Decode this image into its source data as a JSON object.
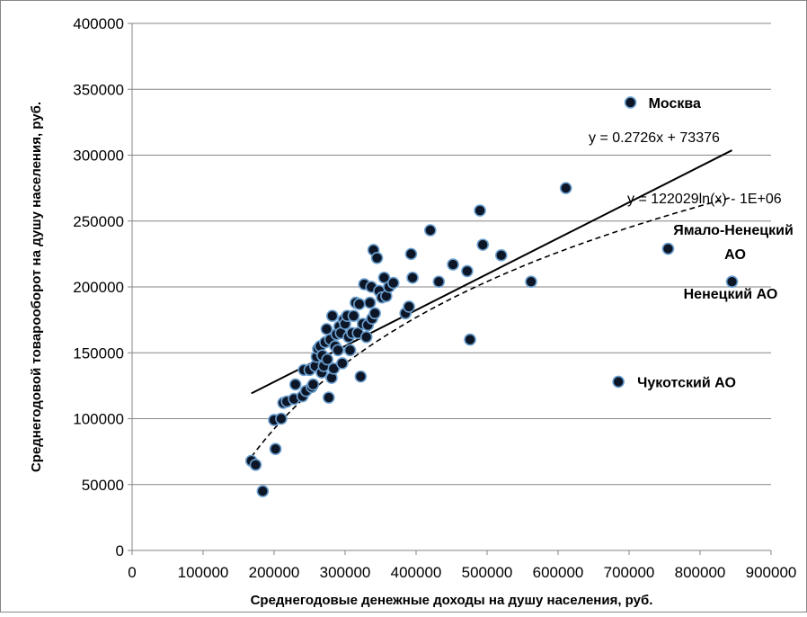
{
  "chart_data": {
    "type": "scatter",
    "xlabel": "Среднегодовые денежные доходы на душу населения, руб.",
    "ylabel": "Среднегодовой товарооборот на душу населения, руб.",
    "xlim": [
      0,
      900000
    ],
    "ylim": [
      0,
      400000
    ],
    "x_ticks": [
      0,
      100000,
      200000,
      300000,
      400000,
      500000,
      600000,
      700000,
      800000,
      900000
    ],
    "y_ticks": [
      0,
      50000,
      100000,
      150000,
      200000,
      250000,
      300000,
      350000,
      400000
    ],
    "x_tick_labels": [
      "0",
      "100000",
      "200000",
      "300000",
      "400000",
      "500000",
      "600000",
      "700000",
      "800000",
      "900000"
    ],
    "y_tick_labels": [
      "0",
      "50000",
      "100000",
      "150000",
      "200000",
      "250000",
      "300000",
      "350000",
      "400000"
    ],
    "grid": "horizontal",
    "colors": {
      "marker_fill": "#0d1626",
      "marker_edge": "#6a9fd0",
      "grid": "#868686",
      "trend": "#000000"
    },
    "series": [
      {
        "values": [
          [
            168000,
            68000
          ],
          [
            174000,
            65000
          ],
          [
            184000,
            45000
          ],
          [
            200000,
            99000
          ],
          [
            202000,
            77000
          ],
          [
            210000,
            100000
          ],
          [
            213000,
            112000
          ],
          [
            218000,
            113000
          ],
          [
            228000,
            115000
          ],
          [
            230000,
            126000
          ],
          [
            240000,
            117000
          ],
          [
            242000,
            137000
          ],
          [
            245000,
            121000
          ],
          [
            250000,
            137000
          ],
          [
            253000,
            124000
          ],
          [
            255000,
            126000
          ],
          [
            258000,
            140000
          ],
          [
            260000,
            147000
          ],
          [
            262000,
            153000
          ],
          [
            265000,
            155000
          ],
          [
            267000,
            135000
          ],
          [
            268000,
            148000
          ],
          [
            270000,
            140000
          ],
          [
            272000,
            158000
          ],
          [
            274000,
            168000
          ],
          [
            275000,
            145000
          ],
          [
            277000,
            116000
          ],
          [
            279000,
            160000
          ],
          [
            281000,
            131000
          ],
          [
            282000,
            178000
          ],
          [
            284000,
            138000
          ],
          [
            286000,
            155000
          ],
          [
            288000,
            164000
          ],
          [
            290000,
            152000
          ],
          [
            292000,
            170000
          ],
          [
            294000,
            165000
          ],
          [
            296000,
            142000
          ],
          [
            298000,
            175000
          ],
          [
            300000,
            172000
          ],
          [
            303000,
            178000
          ],
          [
            305000,
            162000
          ],
          [
            307000,
            152000
          ],
          [
            310000,
            165000
          ],
          [
            312000,
            178000
          ],
          [
            315000,
            188000
          ],
          [
            318000,
            165000
          ],
          [
            320000,
            187000
          ],
          [
            322000,
            132000
          ],
          [
            325000,
            172000
          ],
          [
            327000,
            202000
          ],
          [
            330000,
            162000
          ],
          [
            332000,
            171000
          ],
          [
            335000,
            188000
          ],
          [
            337000,
            200000
          ],
          [
            338000,
            176000
          ],
          [
            340000,
            228000
          ],
          [
            342000,
            180000
          ],
          [
            345000,
            222000
          ],
          [
            348000,
            197000
          ],
          [
            352000,
            192000
          ],
          [
            355000,
            207000
          ],
          [
            358000,
            193000
          ],
          [
            362000,
            200000
          ],
          [
            368000,
            203000
          ],
          [
            385000,
            180000
          ],
          [
            390000,
            185000
          ],
          [
            393000,
            225000
          ],
          [
            395000,
            207000
          ],
          [
            420000,
            243000
          ],
          [
            432000,
            204000
          ],
          [
            452000,
            217000
          ],
          [
            472000,
            212000
          ],
          [
            476000,
            160000
          ],
          [
            490000,
            258000
          ],
          [
            494000,
            232000
          ],
          [
            520000,
            224000
          ],
          [
            562000,
            204000
          ],
          [
            611000,
            275000
          ],
          [
            685000,
            128000
          ],
          [
            702000,
            340000
          ],
          [
            755000,
            229000
          ],
          [
            845000,
            204000
          ]
        ]
      }
    ],
    "trendlines": [
      {
        "type": "linear",
        "equation": "y = 0.2726x + 73376",
        "slope": 0.2726,
        "intercept": 73376,
        "x_range": [
          168000,
          845000
        ],
        "style": "solid"
      },
      {
        "type": "logarithmic",
        "equation": "y = 122029ln(x) - 1E+06",
        "a": 122029,
        "b": -1397260,
        "x_range": [
          168000,
          845000
        ],
        "style": "dashed"
      }
    ],
    "annotations": [
      {
        "text": "Москва",
        "x": 702000,
        "y": 340000
      },
      {
        "text": "Ямало-Ненецкий",
        "x": 755000,
        "y": 229000
      },
      {
        "text": "АО",
        "x": 755000,
        "y": 229000
      },
      {
        "text": "Ненецкий АО",
        "x": 845000,
        "y": 204000
      },
      {
        "text": "Чукотский АО",
        "x": 685000,
        "y": 128000
      }
    ]
  }
}
